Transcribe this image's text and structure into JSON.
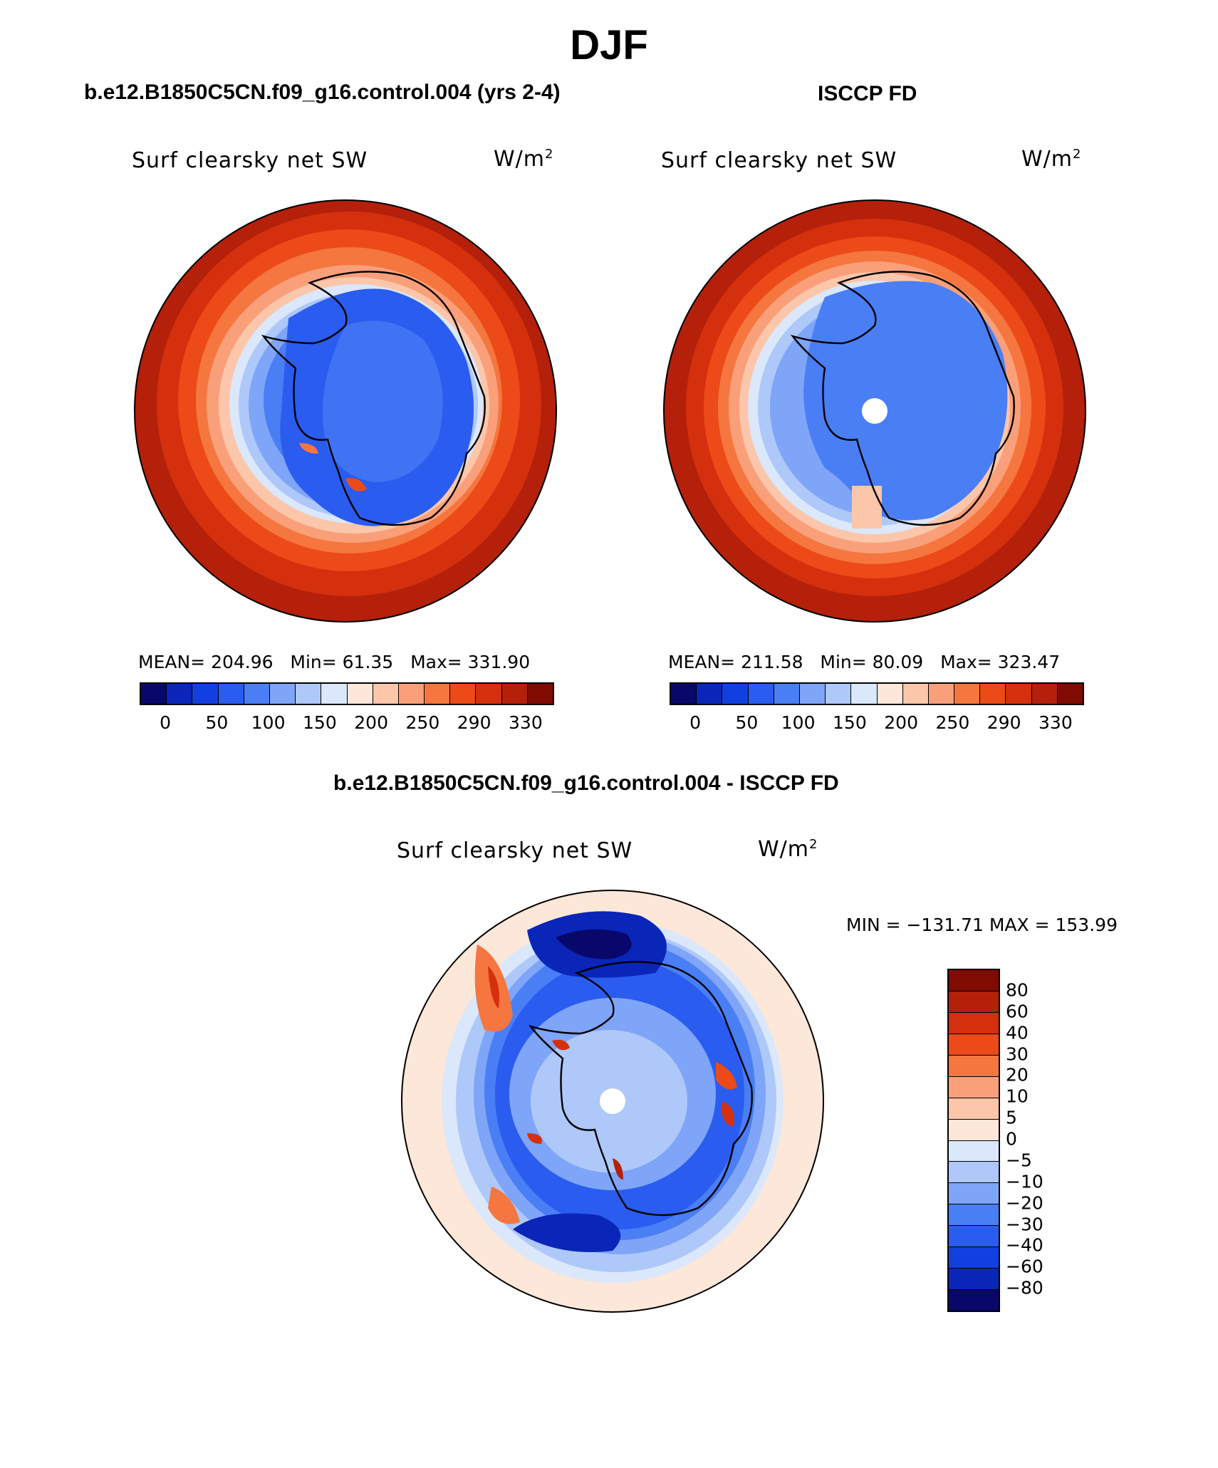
{
  "page": {
    "title": "DJF"
  },
  "colors": {
    "abs_levels": [
      "#08086b",
      "#0a26b8",
      "#1240e0",
      "#2a5cf0",
      "#4a7ef5",
      "#7ea5f7",
      "#aec8f9",
      "#dbe7fb",
      "#fde7d8",
      "#fcc6ab",
      "#f9a07a",
      "#f5763f",
      "#ec4a18",
      "#d4300e",
      "#b42009",
      "#7f0b02"
    ],
    "diff_levels": [
      "#7f0b02",
      "#b42009",
      "#d4300e",
      "#ec4a18",
      "#f5763f",
      "#f9a07a",
      "#fcc6ab",
      "#fde7d8",
      "#dbe7fb",
      "#aec8f9",
      "#7ea5f7",
      "#4a7ef5",
      "#2a5cf0",
      "#1240e0",
      "#0a26b8",
      "#08086b"
    ]
  },
  "panels": [
    {
      "id": "model",
      "case_title": "b.e12.B1850C5CN.f09_g16.control.004 (yrs 2-4)",
      "variable": "Surf clearsky net SW",
      "units": "W/m",
      "units_sup": "2",
      "stats": {
        "mean": "MEAN= 204.96",
        "min": "Min=   61.35",
        "max": "Max= 331.90"
      },
      "colorbar_labels": [
        "0",
        "50",
        "100",
        "150",
        "200",
        "250",
        "290",
        "330"
      ]
    },
    {
      "id": "obs",
      "case_title": "ISCCP FD",
      "variable": "Surf clearsky net SW",
      "units": "W/m",
      "units_sup": "2",
      "stats": {
        "mean": "MEAN= 211.58",
        "min": "Min=   80.09",
        "max": "Max= 323.47"
      },
      "colorbar_labels": [
        "0",
        "50",
        "100",
        "150",
        "200",
        "250",
        "290",
        "330"
      ]
    }
  ],
  "difference": {
    "case_title": "b.e12.B1850C5CN.f09_g16.control.004 - ISCCP FD",
    "variable": "Surf clearsky net SW",
    "units": "W/m",
    "units_sup": "2",
    "minmax": "MIN = −131.71  MAX = 153.99",
    "colorbar_labels": [
      "80",
      "60",
      "40",
      "30",
      "20",
      "10",
      "5",
      "0",
      "−5",
      "−10",
      "−20",
      "−30",
      "−40",
      "−60",
      "−80"
    ]
  }
}
